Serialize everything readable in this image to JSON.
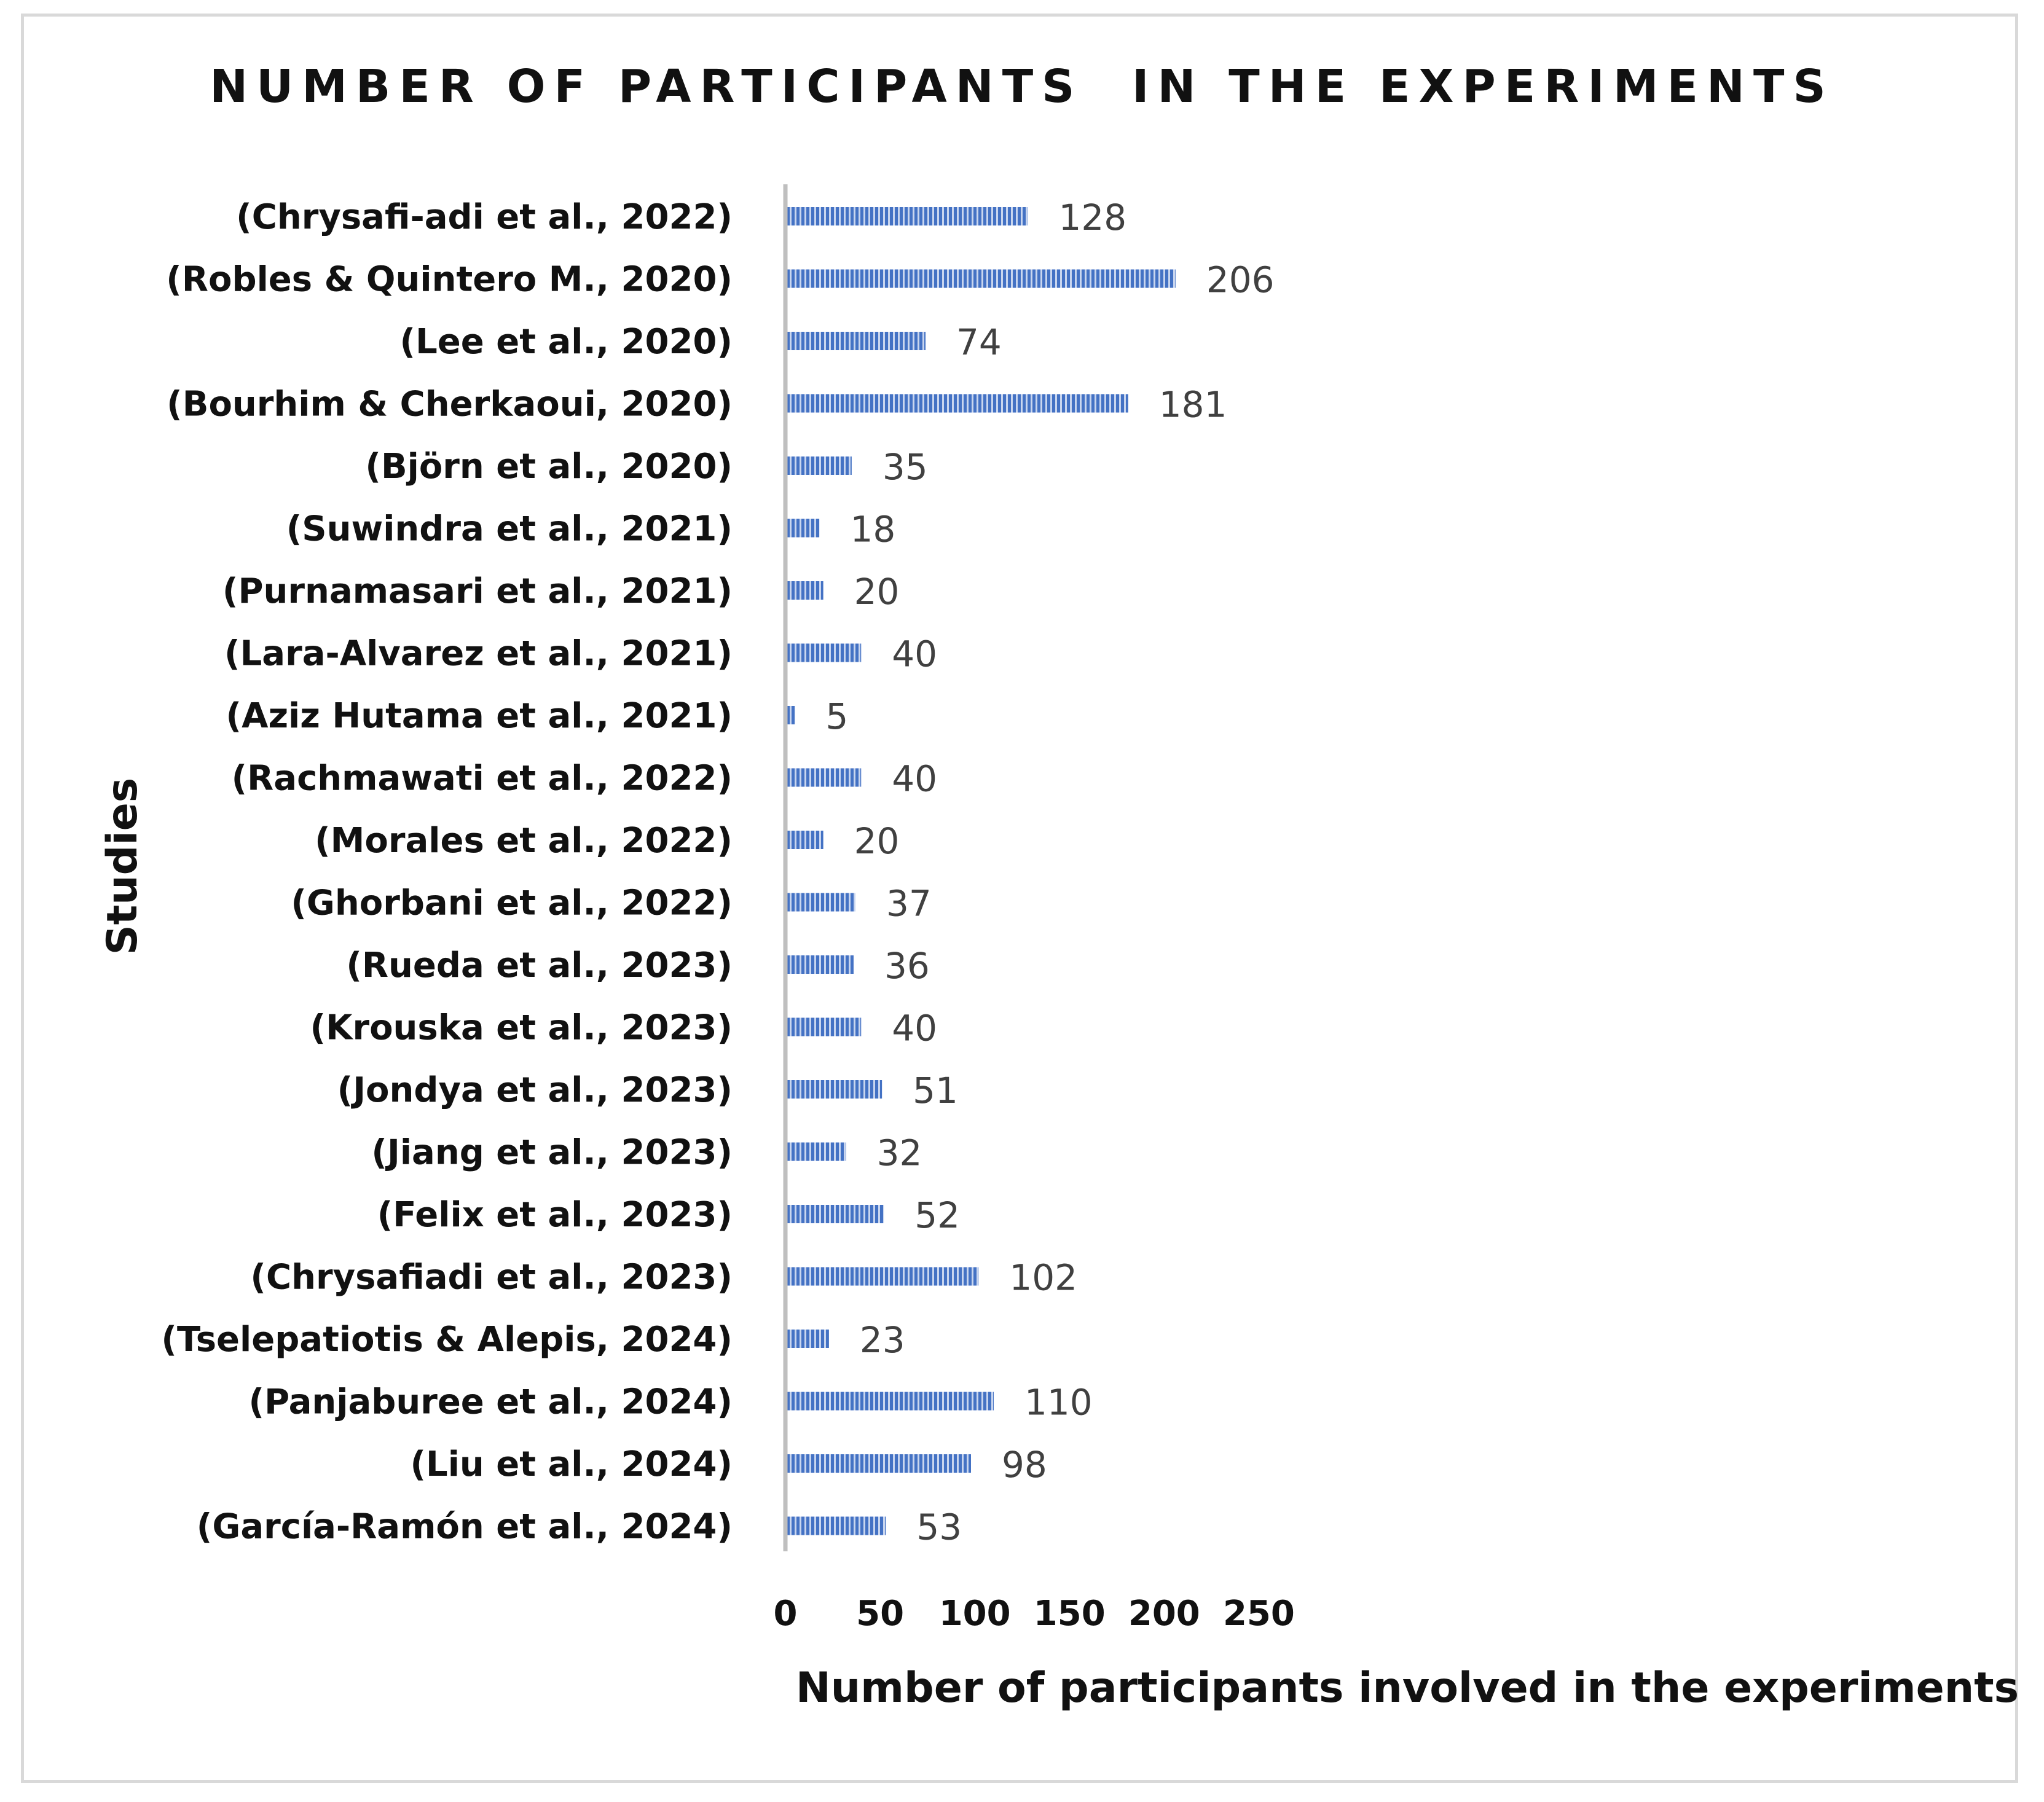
{
  "chart_data": {
    "type": "bar",
    "orientation": "horizontal",
    "title": "NUMBER OF PARTICIPANTS  IN THE EXPERIMENTS",
    "xlabel": "Number of participants involved in the experiments",
    "ylabel": "Studies",
    "xlim": [
      0,
      250
    ],
    "xticks": [
      0,
      50,
      100,
      150,
      200,
      250
    ],
    "grid": false,
    "legend": "none",
    "bar_color": "#4472c4",
    "categories": [
      "(Chrysafi-adi et al., 2022)",
      "(Robles & Quintero M., 2020)",
      "(Lee et al., 2020)",
      "(Bourhim & Cherkaoui, 2020)",
      "(Björn et al., 2020)",
      "(Suwindra et al., 2021)",
      "(Purnamasari et al., 2021)",
      "(Lara-Alvarez et al., 2021)",
      "(Aziz Hutama et al., 2021)",
      "(Rachmawati et al., 2022)",
      "(Morales et al., 2022)",
      "(Ghorbani et al., 2022)",
      "(Rueda et al., 2023)",
      "(Krouska et al., 2023)",
      "(Jondya et al., 2023)",
      "(Jiang et al., 2023)",
      "(Felix et al., 2023)",
      "(Chrysafiadi et al., 2023)",
      "(Tselepatiotis & Alepis, 2024)",
      "(Panjaburee et al., 2024)",
      "(Liu et al., 2024)",
      "(García-Ramón et al., 2024)"
    ],
    "values": [
      128,
      206,
      74,
      181,
      35,
      18,
      20,
      40,
      5,
      40,
      20,
      37,
      36,
      40,
      51,
      32,
      52,
      102,
      23,
      110,
      98,
      53
    ]
  }
}
